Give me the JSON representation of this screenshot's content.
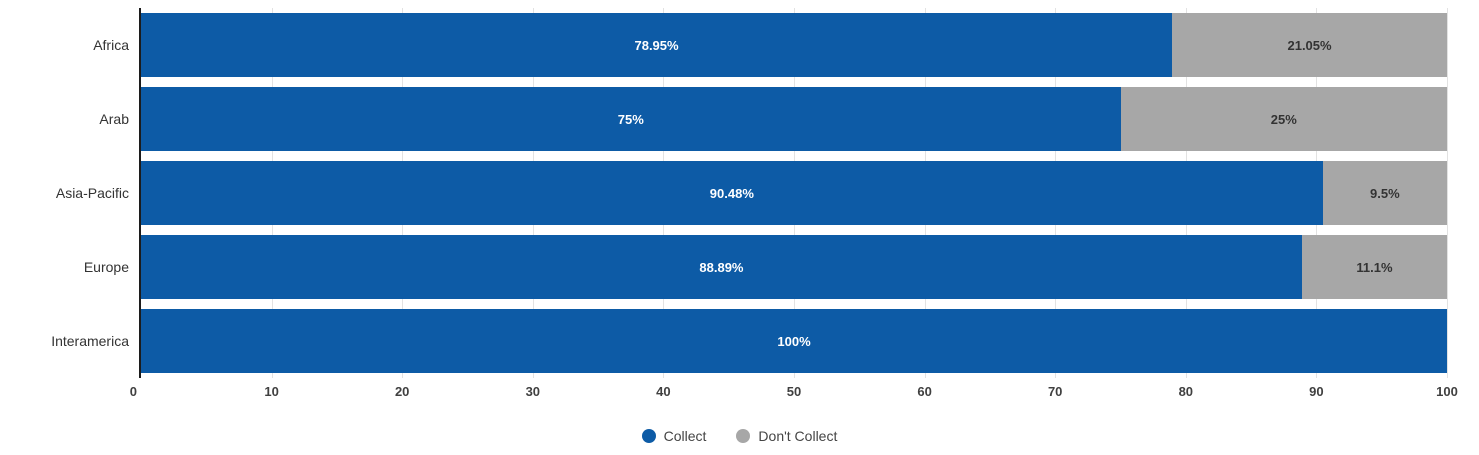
{
  "chart_data": {
    "type": "bar",
    "orientation": "horizontal",
    "stacked": true,
    "title": "",
    "categories": [
      "Africa",
      "Arab",
      "Asia-Pacific",
      "Europe",
      "Interamerica"
    ],
    "series": [
      {
        "name": "Collect",
        "color": "#0d5ba6",
        "label_color": "#ffffff",
        "values": [
          78.95,
          75,
          90.48,
          88.89,
          100
        ],
        "labels": [
          "78.95%",
          "75%",
          "90.48%",
          "88.89%",
          "100%"
        ]
      },
      {
        "name": "Don't Collect",
        "color": "#a7a7a7",
        "label_color": "#333333",
        "values": [
          21.05,
          25,
          9.52,
          11.11,
          0
        ],
        "labels": [
          "21.05%",
          "25%",
          "9.5%",
          "11.1%",
          ""
        ]
      }
    ],
    "x_ticks": [
      "0",
      "10",
      "20",
      "30",
      "40",
      "50",
      "60",
      "70",
      "80",
      "90",
      "100"
    ],
    "xlim": [
      0,
      100
    ],
    "grid": true,
    "legend_position": "bottom",
    "colors": {
      "gridline": "#e2e2e2",
      "axis_line": "#1c1c1c",
      "tick_text": "#404040",
      "category_text": "#333333",
      "background": "#ffffff"
    }
  }
}
